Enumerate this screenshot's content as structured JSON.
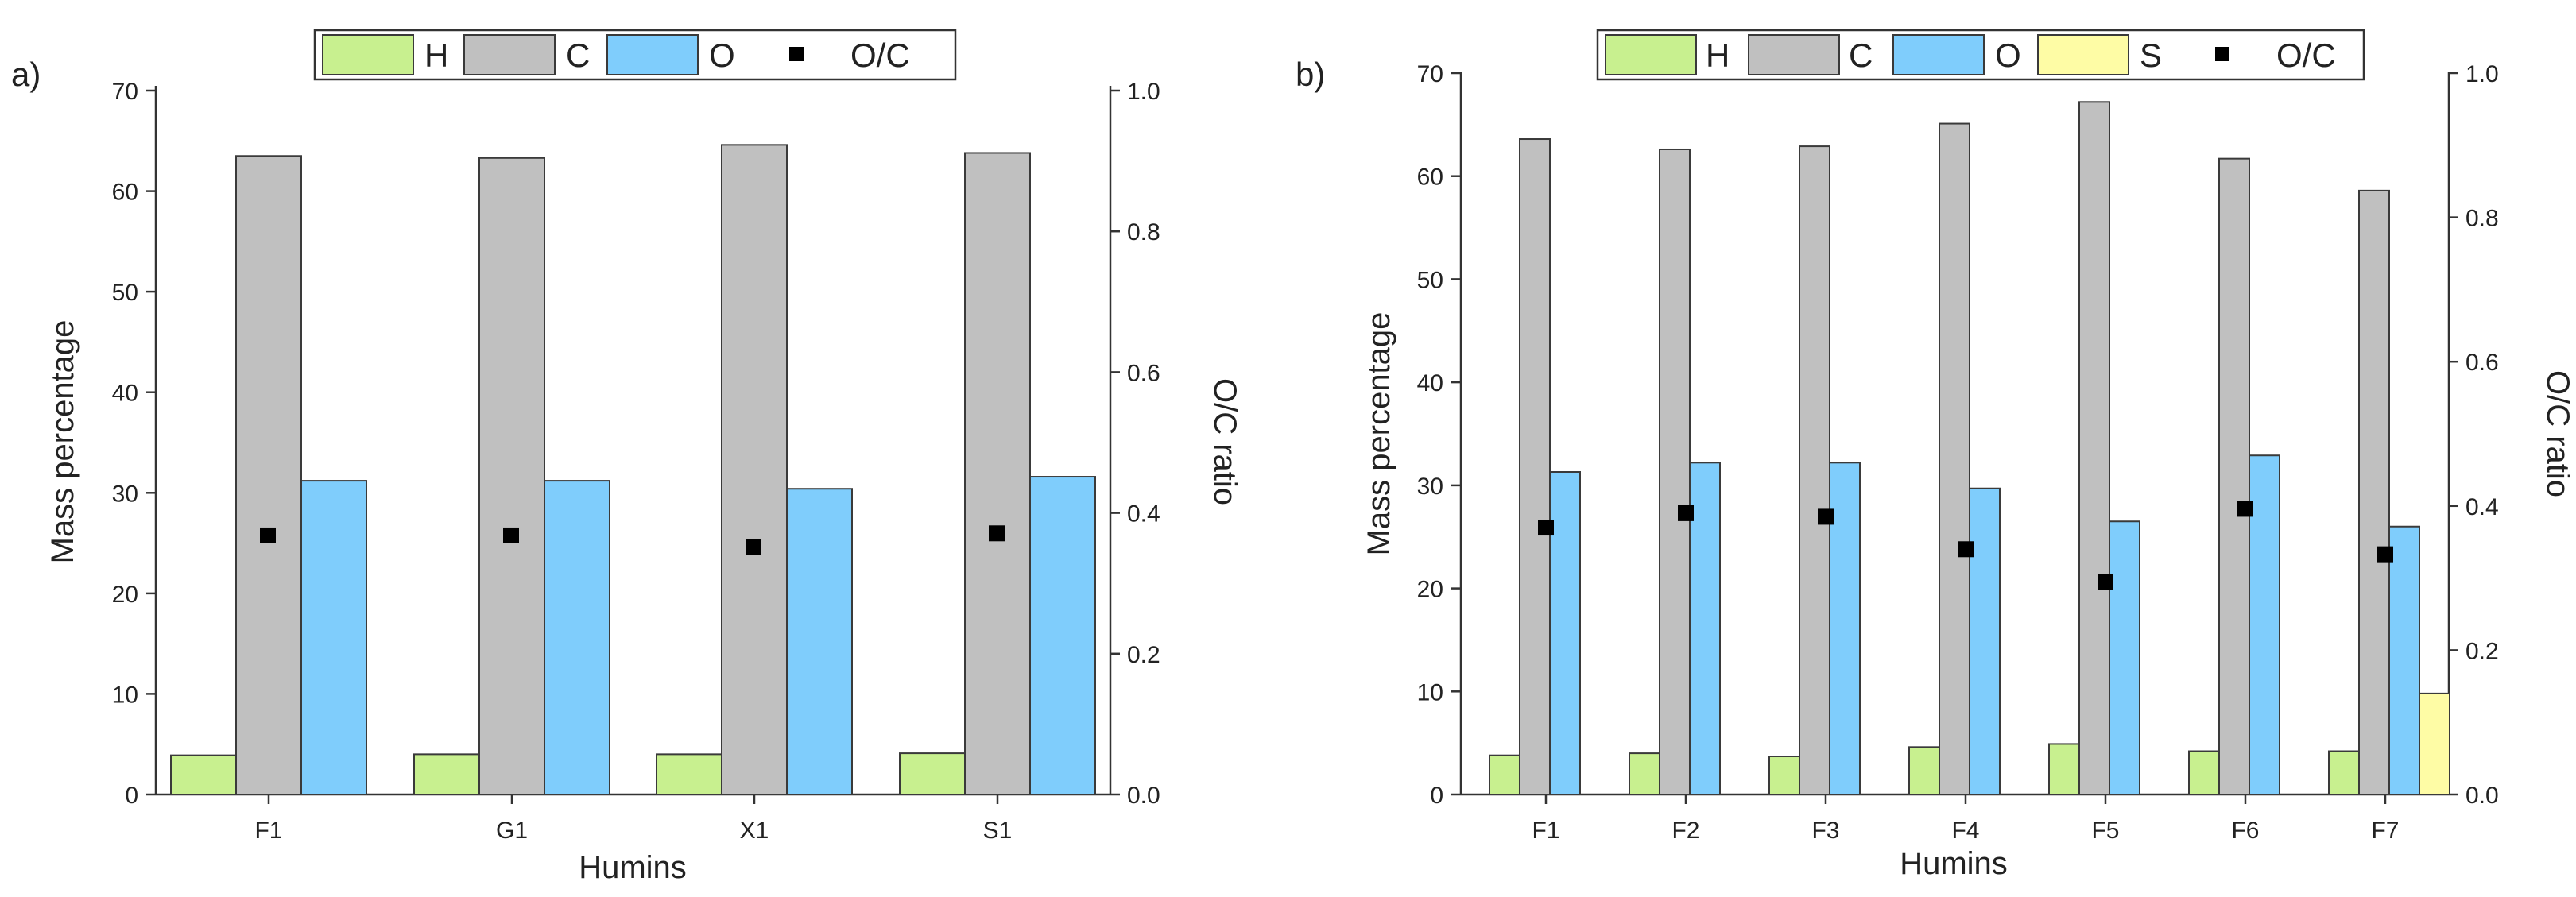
{
  "colors": {
    "H": "#c8f08f",
    "C": "#c0c0c0",
    "O": "#7fcdfc",
    "S": "#fefca5",
    "ratio": "#000000"
  },
  "chart_data": [
    {
      "type": "bar",
      "panel_label": "a)",
      "categories": [
        "F1",
        "G1",
        "X1",
        "S1"
      ],
      "series": [
        {
          "name": "H",
          "values": [
            3.9,
            4.0,
            4.0,
            4.1
          ]
        },
        {
          "name": "C",
          "values": [
            63.5,
            63.3,
            64.6,
            63.8
          ]
        },
        {
          "name": "O",
          "values": [
            31.2,
            31.2,
            30.4,
            31.6
          ]
        }
      ],
      "secondary_series": {
        "name": "O/C",
        "values": [
          0.368,
          0.368,
          0.352,
          0.371
        ]
      },
      "xlabel": "Humins",
      "ylabel": "Mass percentage",
      "y2label": "O/C ratio",
      "ylim": [
        0,
        70
      ],
      "y2lim": [
        0,
        1.0
      ],
      "yticks": [
        "0",
        "10",
        "20",
        "30",
        "40",
        "50",
        "60",
        "70"
      ],
      "y2ticks": [
        "0.0",
        "0.2",
        "0.4",
        "0.6",
        "0.8",
        "1.0"
      ],
      "legend": [
        "H",
        "C",
        "O",
        "O/C"
      ],
      "legend_position": "top"
    },
    {
      "type": "bar",
      "panel_label": "b)",
      "categories": [
        "F1",
        "F2",
        "F3",
        "F4",
        "F5",
        "F6",
        "F7"
      ],
      "series": [
        {
          "name": "H",
          "values": [
            3.8,
            4.0,
            3.7,
            4.6,
            4.9,
            4.2,
            4.2
          ]
        },
        {
          "name": "C",
          "values": [
            63.6,
            62.6,
            62.9,
            65.1,
            67.2,
            61.7,
            58.6
          ]
        },
        {
          "name": "O",
          "values": [
            31.3,
            32.2,
            32.2,
            29.7,
            26.5,
            32.9,
            26.0
          ]
        },
        {
          "name": "S",
          "values": [
            0,
            0,
            0,
            0,
            0,
            0,
            9.8
          ]
        }
      ],
      "secondary_series": {
        "name": "O/C",
        "values": [
          0.37,
          0.39,
          0.385,
          0.34,
          0.295,
          0.396,
          0.333
        ]
      },
      "xlabel": "Humins",
      "ylabel": "Mass percentage",
      "y2label": "O/C ratio",
      "ylim": [
        0,
        70
      ],
      "y2lim": [
        0,
        1.0
      ],
      "yticks": [
        "0",
        "10",
        "20",
        "30",
        "40",
        "50",
        "60",
        "70"
      ],
      "y2ticks": [
        "0.0",
        "0.2",
        "0.4",
        "0.6",
        "0.8",
        "1.0"
      ],
      "legend": [
        "H",
        "C",
        "O",
        "S",
        "O/C"
      ],
      "legend_position": "top"
    }
  ]
}
